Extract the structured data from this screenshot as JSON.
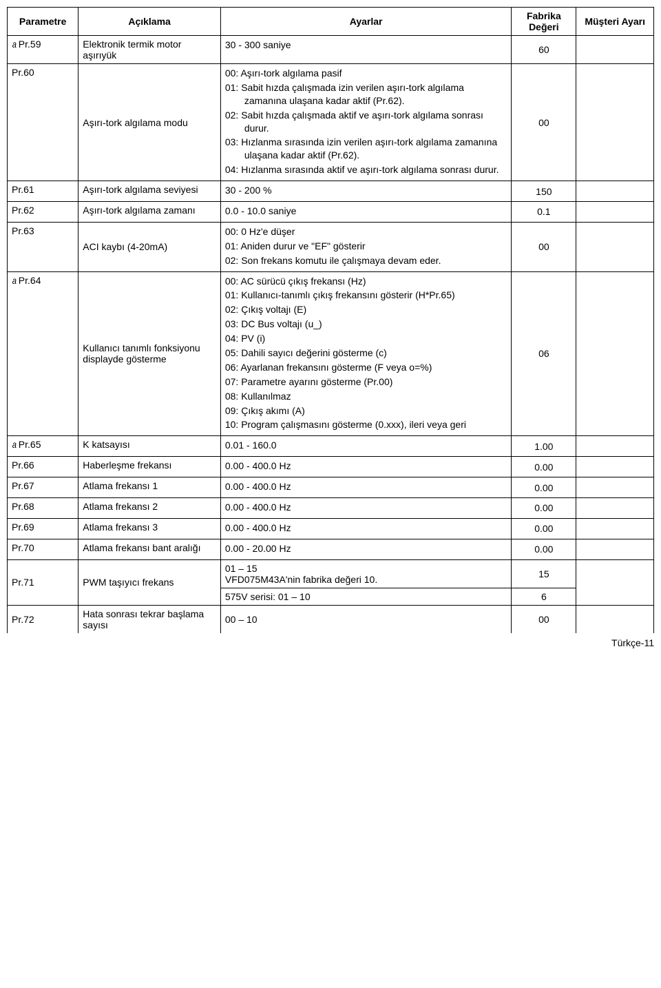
{
  "headers": {
    "param": "Parametre",
    "desc": "Açıklama",
    "settings": "Ayarlar",
    "factory": "Fabrika Değeri",
    "customer": "Müşteri Ayarı"
  },
  "bolt": "a",
  "rows": [
    {
      "param": "Pr.59",
      "bolt": true,
      "desc": "Elektronik termik motor aşırıyük",
      "settings": [
        "30 - 300 saniye"
      ],
      "factory": "60"
    },
    {
      "param": "Pr.60",
      "desc": "Aşırı-tork algılama modu",
      "settings": [
        "00: Aşırı-tork algılama pasif",
        "01: Sabit hızda çalışmada izin verilen aşırı-tork algılama zamanına ulaşana kadar aktif (Pr.62).",
        "02: Sabit hızda çalışmada aktif ve aşırı-tork algılama sonrası durur.",
        "03: Hızlanma sırasında izin verilen aşırı-tork algılama zamanına ulaşana kadar aktif (Pr.62).",
        "04: Hızlanma sırasında aktif ve aşırı-tork algılama sonrası durur."
      ],
      "factory": "00",
      "desc_valign": "middle"
    },
    {
      "param": "Pr.61",
      "desc": "Aşırı-tork algılama seviyesi",
      "settings": [
        "30 - 200 %"
      ],
      "factory": "150"
    },
    {
      "param": "Pr.62",
      "desc": "Aşırı-tork algılama zamanı",
      "settings": [
        "0.0 - 10.0 saniye"
      ],
      "factory": "0.1"
    },
    {
      "param": "Pr.63",
      "desc": "ACI kaybı (4-20mA)",
      "settings": [
        "00: 0 Hz'e düşer",
        "01: Aniden durur ve \"EF\" gösterir",
        "02: Son frekans komutu ile çalışmaya devam eder."
      ],
      "factory": "00",
      "desc_valign": "middle"
    },
    {
      "param": "Pr.64",
      "bolt": true,
      "desc": "Kullanıcı tanımlı fonksiyonu displayde gösterme",
      "settings": [
        "00: AC sürücü çıkış frekansı  (Hz)",
        "01: Kullanıcı-tanımlı çıkış frekansını gösterir (H*Pr.65)",
        "02: Çıkış voltajı (E)",
        "03: DC Bus voltajı (u_)",
        "04: PV (i)",
        "05: Dahili sayıcı değerini gösterme (c)",
        "06: Ayarlanan  frekansını gösterme (F veya o=%)",
        "07: Parametre ayarını gösterme (Pr.00)",
        "08: Kullanılmaz",
        "09: Çıkış akımı (A)",
        "10: Program çalışmasını gösterme (0.xxx), ileri veya geri"
      ],
      "factory": "06",
      "desc_valign": "middle"
    },
    {
      "param": "Pr.65",
      "bolt": true,
      "desc": "K katsayısı",
      "settings": [
        "0.01 - 160.0"
      ],
      "factory": "1.00"
    },
    {
      "param": "Pr.66",
      "desc": "Haberleşme frekansı",
      "settings": [
        "0.00 - 400.0 Hz"
      ],
      "factory": "0.00"
    },
    {
      "param": "Pr.67",
      "desc": "Atlama frekansı 1",
      "settings": [
        "0.00 - 400.0 Hz"
      ],
      "factory": "0.00"
    },
    {
      "param": "Pr.68",
      "desc": "Atlama frekansı 2",
      "settings": [
        "0.00 - 400.0 Hz"
      ],
      "factory": "0.00"
    },
    {
      "param": "Pr.69",
      "desc": "Atlama frekansı 3",
      "settings": [
        "0.00 - 400.0 Hz"
      ],
      "factory": "0.00"
    },
    {
      "param": "Pr.70",
      "desc": "Atlama frekansı bant aralığı",
      "settings": [
        "0.00 - 20.00 Hz"
      ],
      "factory": "0.00"
    }
  ],
  "pr71": {
    "param": "Pr.71",
    "desc": "PWM taşıyıcı frekans",
    "line1": "01 – 15",
    "line2": "VFD075M43A'nin fabrika değeri 10.",
    "factory1": "15",
    "line3": "575V serisi: 01 – 10",
    "factory2": "6"
  },
  "pr72": {
    "param": "Pr.72",
    "desc": "Hata sonrası tekrar başlama sayısı",
    "settings": "00 – 10",
    "factory": "00"
  },
  "footer": "Türkçe-11"
}
